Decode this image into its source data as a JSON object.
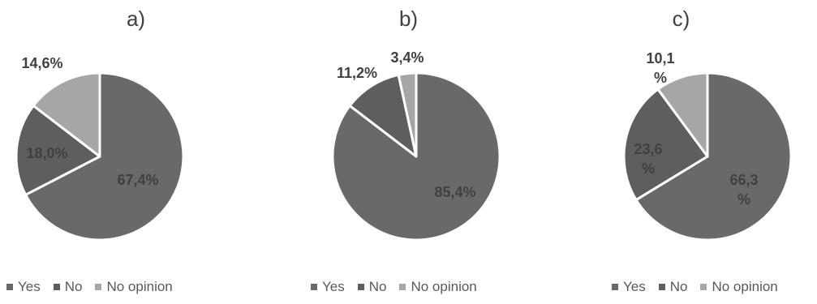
{
  "chart_data": [
    {
      "type": "pie",
      "title": "a)",
      "categories": [
        "Yes",
        "No",
        "No opinion"
      ],
      "values": [
        67.4,
        18.0,
        14.6
      ],
      "labels": [
        "67,4%",
        "18,0%",
        "14,6%"
      ],
      "colors": [
        "#696969",
        "#5e5e5e",
        "#a6a6a6"
      ],
      "legend_position": "bottom-left"
    },
    {
      "type": "pie",
      "title": "b)",
      "categories": [
        "Yes",
        "No",
        "No opinion"
      ],
      "values": [
        85.4,
        11.2,
        3.4
      ],
      "labels": [
        "85,4%",
        "11,2%",
        "3,4%"
      ],
      "colors": [
        "#696969",
        "#5e5e5e",
        "#a6a6a6"
      ],
      "legend_position": "bottom-left"
    },
    {
      "type": "pie",
      "title": "c)",
      "categories": [
        "Yes",
        "No",
        "No opinion"
      ],
      "values": [
        66.3,
        23.6,
        10.1
      ],
      "labels": [
        "66,3\n%",
        "23,6\n%",
        "10,1\n%"
      ],
      "colors": [
        "#696969",
        "#5e5e5e",
        "#a6a6a6"
      ],
      "legend_position": "bottom-left"
    }
  ]
}
